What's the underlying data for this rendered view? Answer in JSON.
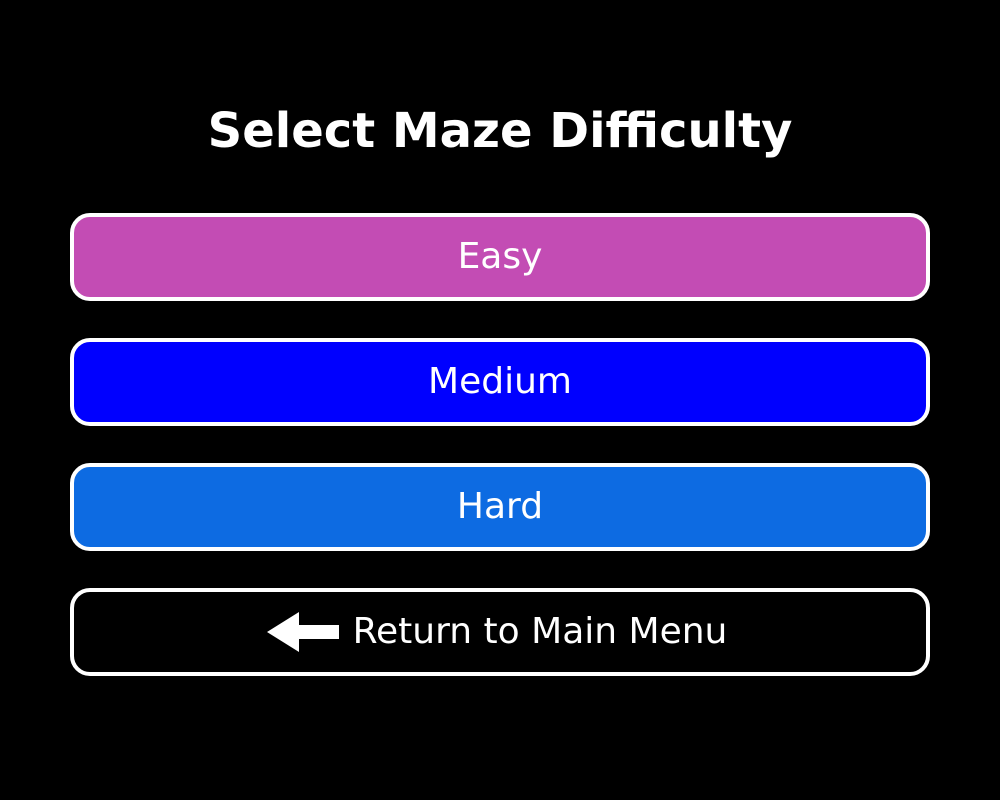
{
  "title": "Select Maze Difficulty",
  "buttons": [
    {
      "label": "Easy",
      "color": "#c34cb4"
    },
    {
      "label": "Medium",
      "color": "#0000ff"
    },
    {
      "label": "Hard",
      "color": "#0d6be2"
    }
  ],
  "back": {
    "label": "Return to Main Menu",
    "icon": "left-arrow-icon",
    "color": "#000000"
  },
  "colors": {
    "background": "#000000",
    "border": "#ffffff",
    "text": "#ffffff"
  }
}
